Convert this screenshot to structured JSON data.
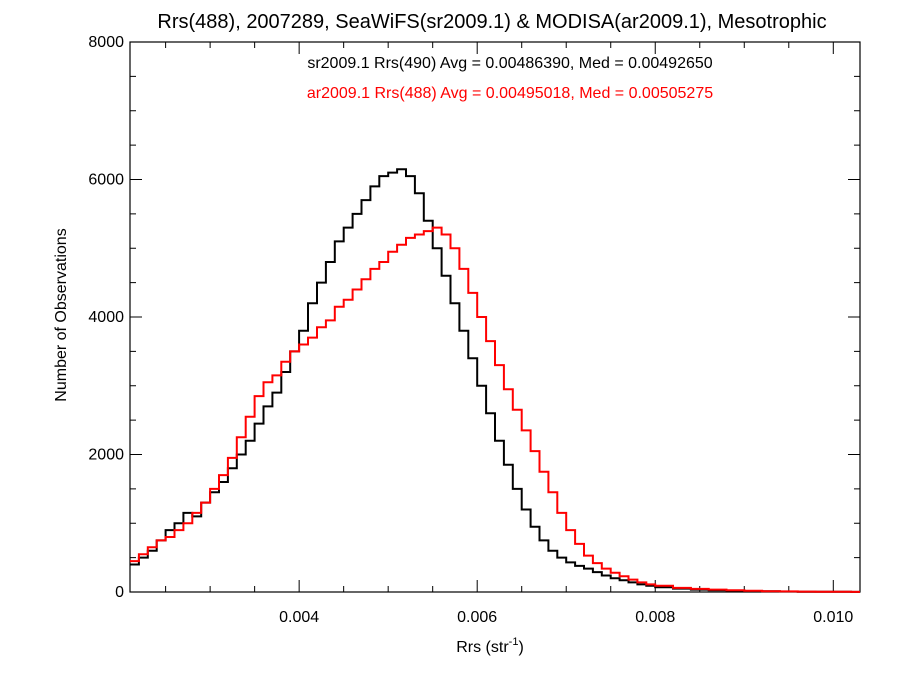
{
  "chart_data": {
    "type": "line",
    "step": true,
    "title": "Rrs(488), 2007289, SeaWiFS(sr2009.1) & MODISA(ar2009.1), Mesotrophic",
    "xlabel": "Rrs (str",
    "xlabel_sup": "-1",
    "xlabel_end": ")",
    "ylabel": "Number of Observations",
    "xlim": [
      0.0021,
      0.0103
    ],
    "ylim": [
      0,
      8000
    ],
    "xticks": [
      {
        "value": 0.004,
        "label": "0.004"
      },
      {
        "value": 0.006,
        "label": "0.006"
      },
      {
        "value": 0.008,
        "label": "0.008"
      },
      {
        "value": 0.01,
        "label": "0.010"
      }
    ],
    "yticks": [
      {
        "value": 0,
        "label": "0"
      },
      {
        "value": 2000,
        "label": "2000"
      },
      {
        "value": 4000,
        "label": "4000"
      },
      {
        "value": 6000,
        "label": "6000"
      },
      {
        "value": 8000,
        "label": "8000"
      }
    ],
    "grid": false,
    "legend_position": "top-center",
    "series": [
      {
        "name": "sr2009.1 Rrs(490) Avg = 0.00486390, Med = 0.00492650",
        "color": "#000000",
        "x": [
          0.0021,
          0.0022,
          0.0023,
          0.0024,
          0.0025,
          0.0026,
          0.0027,
          0.0028,
          0.0029,
          0.003,
          0.0031,
          0.0032,
          0.0033,
          0.0034,
          0.0035,
          0.0036,
          0.0037,
          0.0038,
          0.0039,
          0.004,
          0.0041,
          0.0042,
          0.0043,
          0.0044,
          0.0045,
          0.0046,
          0.0047,
          0.0048,
          0.0049,
          0.005,
          0.0051,
          0.0052,
          0.0053,
          0.0054,
          0.0055,
          0.0056,
          0.0057,
          0.0058,
          0.0059,
          0.006,
          0.0061,
          0.0062,
          0.0063,
          0.0064,
          0.0065,
          0.0066,
          0.0067,
          0.0068,
          0.0069,
          0.007,
          0.0071,
          0.0072,
          0.0073,
          0.0074,
          0.0075,
          0.0076,
          0.0077,
          0.0078,
          0.0079,
          0.008,
          0.0082,
          0.0084,
          0.0086,
          0.0088,
          0.009,
          0.0092,
          0.0094,
          0.0096,
          0.0098,
          0.01,
          0.0102
        ],
        "y": [
          400,
          500,
          600,
          750,
          900,
          1000,
          1150,
          1100,
          1300,
          1450,
          1600,
          1800,
          2000,
          2200,
          2450,
          2700,
          2900,
          3200,
          3500,
          3800,
          4200,
          4500,
          4800,
          5100,
          5300,
          5500,
          5700,
          5900,
          6050,
          6100,
          6150,
          6050,
          5800,
          5400,
          5000,
          4600,
          4200,
          3800,
          3400,
          3000,
          2600,
          2200,
          1850,
          1500,
          1200,
          950,
          750,
          600,
          500,
          430,
          380,
          340,
          290,
          240,
          200,
          170,
          140,
          110,
          90,
          70,
          50,
          35,
          25,
          20,
          15,
          10,
          8,
          5,
          4,
          3,
          2
        ]
      },
      {
        "name": "ar2009.1 Rrs(488) Avg = 0.00495018, Med = 0.00505275",
        "color": "#ff0000",
        "x": [
          0.0021,
          0.0022,
          0.0023,
          0.0024,
          0.0025,
          0.0026,
          0.0027,
          0.0028,
          0.0029,
          0.003,
          0.0031,
          0.0032,
          0.0033,
          0.0034,
          0.0035,
          0.0036,
          0.0037,
          0.0038,
          0.0039,
          0.004,
          0.0041,
          0.0042,
          0.0043,
          0.0044,
          0.0045,
          0.0046,
          0.0047,
          0.0048,
          0.0049,
          0.005,
          0.0051,
          0.0052,
          0.0053,
          0.0054,
          0.0055,
          0.0056,
          0.0057,
          0.0058,
          0.0059,
          0.006,
          0.0061,
          0.0062,
          0.0063,
          0.0064,
          0.0065,
          0.0066,
          0.0067,
          0.0068,
          0.0069,
          0.007,
          0.0071,
          0.0072,
          0.0073,
          0.0074,
          0.0075,
          0.0076,
          0.0077,
          0.0078,
          0.0079,
          0.008,
          0.0082,
          0.0084,
          0.0086,
          0.0088,
          0.009,
          0.0092,
          0.0094,
          0.0096,
          0.0098,
          0.01,
          0.0102
        ],
        "y": [
          450,
          550,
          650,
          750,
          800,
          900,
          1000,
          1150,
          1300,
          1500,
          1700,
          1950,
          2250,
          2550,
          2850,
          3050,
          3150,
          3350,
          3500,
          3600,
          3700,
          3850,
          3950,
          4150,
          4250,
          4400,
          4550,
          4700,
          4800,
          4950,
          5050,
          5150,
          5200,
          5250,
          5300,
          5200,
          5000,
          4700,
          4350,
          4000,
          3650,
          3300,
          2950,
          2650,
          2350,
          2050,
          1750,
          1450,
          1150,
          900,
          700,
          530,
          420,
          340,
          280,
          230,
          180,
          140,
          110,
          90,
          60,
          45,
          35,
          25,
          18,
          12,
          9,
          6,
          4,
          3,
          2
        ]
      }
    ]
  }
}
